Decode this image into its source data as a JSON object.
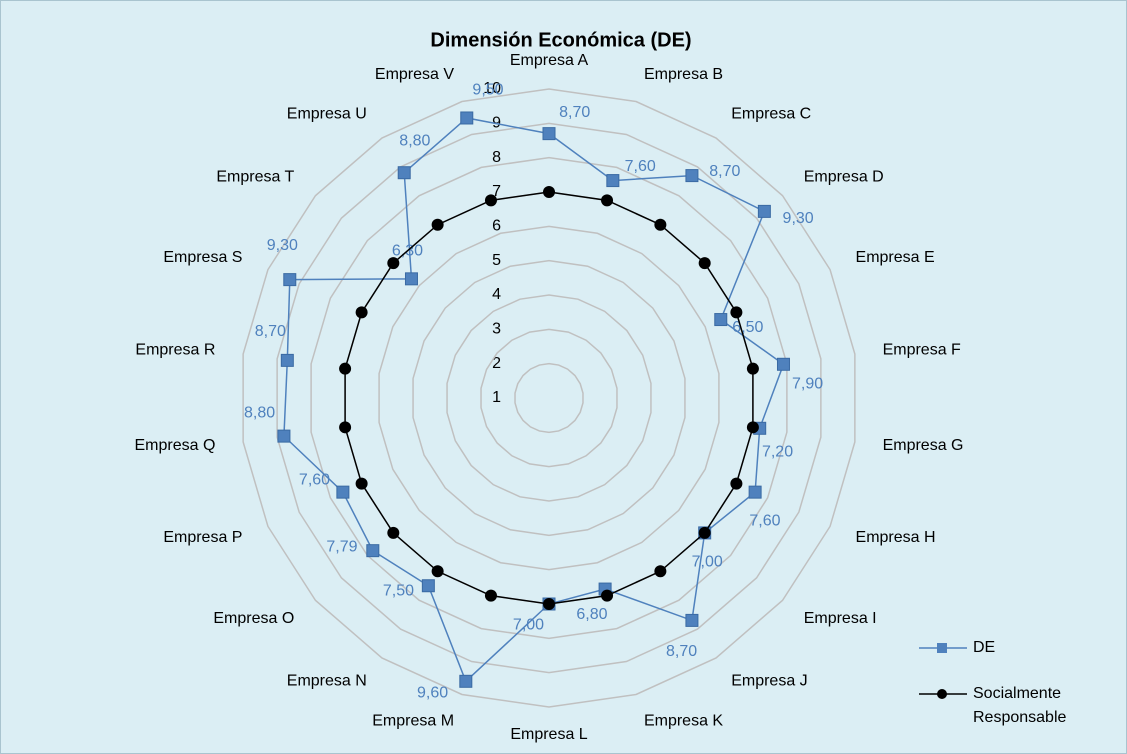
{
  "chart_data": {
    "type": "radar",
    "title": "Dimensión Económica (DE)",
    "categories": [
      "Empresa A",
      "Empresa B",
      "Empresa C",
      "Empresa D",
      "Empresa E",
      "Empresa F",
      "Empresa G",
      "Empresa H",
      "Empresa I",
      "Empresa J",
      "Empresa K",
      "Empresa L",
      "Empresa M",
      "Empresa N",
      "Empresa O",
      "Empresa P",
      "Empresa Q",
      "Empresa R",
      "Empresa S",
      "Empresa T",
      "Empresa U",
      "Empresa V"
    ],
    "series": [
      {
        "name": "DE",
        "color": "#4f81bd",
        "marker": "square",
        "values": [
          8.7,
          7.6,
          8.7,
          9.3,
          6.5,
          7.9,
          7.2,
          7.6,
          7.0,
          8.7,
          6.8,
          7.0,
          9.6,
          7.5,
          7.79,
          7.6,
          8.8,
          8.7,
          9.3,
          6.3,
          8.8,
          9.5
        ],
        "value_labels": [
          "8,70",
          "7,60",
          "8,70",
          "9,30",
          "6,50",
          "7,90",
          "7,20",
          "7,60",
          "7,00",
          "8,70",
          "6,80",
          "7,00",
          "9,60",
          "7,50",
          "7,79",
          "7,60",
          "8,80",
          "8,70",
          "9,30",
          "6,30",
          "8,80",
          "9,50"
        ]
      },
      {
        "name": "Socialmente Responsable",
        "color": "#000000",
        "marker": "circle",
        "values": [
          7,
          7,
          7,
          7,
          7,
          7,
          7,
          7,
          7,
          7,
          7,
          7,
          7,
          7,
          7,
          7,
          7,
          7,
          7,
          7,
          7,
          7
        ]
      }
    ],
    "ylim": [
      1,
      10
    ],
    "yticks": [
      1,
      2,
      3,
      4,
      5,
      6,
      7,
      8,
      9,
      10
    ],
    "grid": true,
    "legend": "right"
  }
}
